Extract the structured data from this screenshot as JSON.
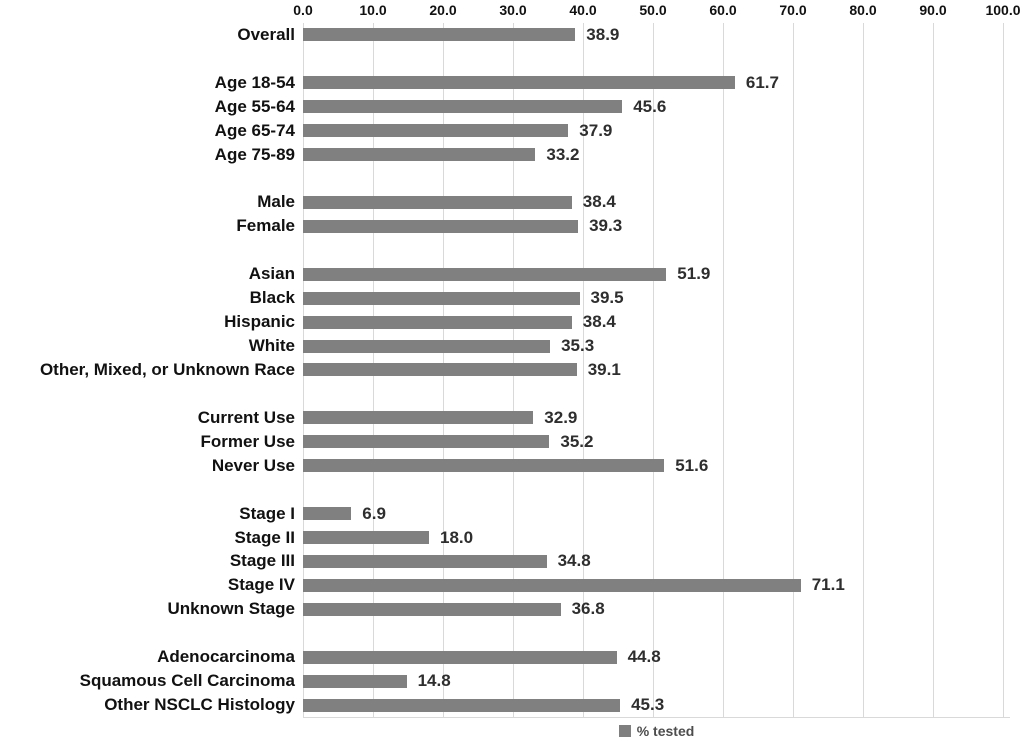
{
  "chart_data": {
    "type": "bar",
    "orientation": "horizontal",
    "title": "",
    "xlabel": "",
    "ylabel": "",
    "xlim": [
      0,
      100
    ],
    "x_ticks": [
      "0.0",
      "10.0",
      "20.0",
      "30.0",
      "40.0",
      "50.0",
      "60.0",
      "70.0",
      "80.0",
      "90.0",
      "100.0"
    ],
    "x_tick_values": [
      0,
      10,
      20,
      30,
      40,
      50,
      60,
      70,
      80,
      90,
      100
    ],
    "grid": "vertical",
    "legend": {
      "label": "% tested",
      "position": "bottom-center"
    },
    "colors": {
      "bar": "#808080",
      "gridline": "#d9d9d9",
      "axis_line": "#d9d9d9",
      "category_label": "#111111",
      "value_label": "#2e2e2e",
      "legend_swatch": "#7f7f7f",
      "legend_text": "#4d4d4d",
      "background": "#ffffff"
    },
    "groups": [
      {
        "name": "overall",
        "items": [
          {
            "label": "Overall",
            "value": 38.9,
            "value_label": "38.9"
          }
        ]
      },
      {
        "name": "age",
        "items": [
          {
            "label": "Age 18-54",
            "value": 61.7,
            "value_label": "61.7"
          },
          {
            "label": "Age 55-64",
            "value": 45.6,
            "value_label": "45.6"
          },
          {
            "label": "Age 65-74",
            "value": 37.9,
            "value_label": "37.9"
          },
          {
            "label": "Age 75-89",
            "value": 33.2,
            "value_label": "33.2"
          }
        ]
      },
      {
        "name": "sex",
        "items": [
          {
            "label": "Male",
            "value": 38.4,
            "value_label": "38.4"
          },
          {
            "label": "Female",
            "value": 39.3,
            "value_label": "39.3"
          }
        ]
      },
      {
        "name": "race-ethnicity",
        "items": [
          {
            "label": "Asian",
            "value": 51.9,
            "value_label": "51.9"
          },
          {
            "label": "Black",
            "value": 39.5,
            "value_label": "39.5"
          },
          {
            "label": "Hispanic",
            "value": 38.4,
            "value_label": "38.4"
          },
          {
            "label": "White",
            "value": 35.3,
            "value_label": "35.3"
          },
          {
            "label": "Other, Mixed, or Unknown Race",
            "value": 39.1,
            "value_label": "39.1"
          }
        ]
      },
      {
        "name": "tobacco-use",
        "items": [
          {
            "label": "Current Use",
            "value": 32.9,
            "value_label": "32.9"
          },
          {
            "label": "Former Use",
            "value": 35.2,
            "value_label": "35.2"
          },
          {
            "label": "Never Use",
            "value": 51.6,
            "value_label": "51.6"
          }
        ]
      },
      {
        "name": "stage",
        "items": [
          {
            "label": "Stage I",
            "value": 6.9,
            "value_label": "6.9"
          },
          {
            "label": "Stage II",
            "value": 18.0,
            "value_label": "18.0"
          },
          {
            "label": "Stage III",
            "value": 34.8,
            "value_label": "34.8"
          },
          {
            "label": "Stage IV",
            "value": 71.1,
            "value_label": "71.1"
          },
          {
            "label": "Unknown Stage",
            "value": 36.8,
            "value_label": "36.8"
          }
        ]
      },
      {
        "name": "histology",
        "items": [
          {
            "label": "Adenocarcinoma",
            "value": 44.8,
            "value_label": "44.8"
          },
          {
            "label": "Squamous Cell Carcinoma",
            "value": 14.8,
            "value_label": "14.8"
          },
          {
            "label": "Other NSCLC Histology",
            "value": 45.3,
            "value_label": "45.3"
          }
        ]
      }
    ]
  }
}
